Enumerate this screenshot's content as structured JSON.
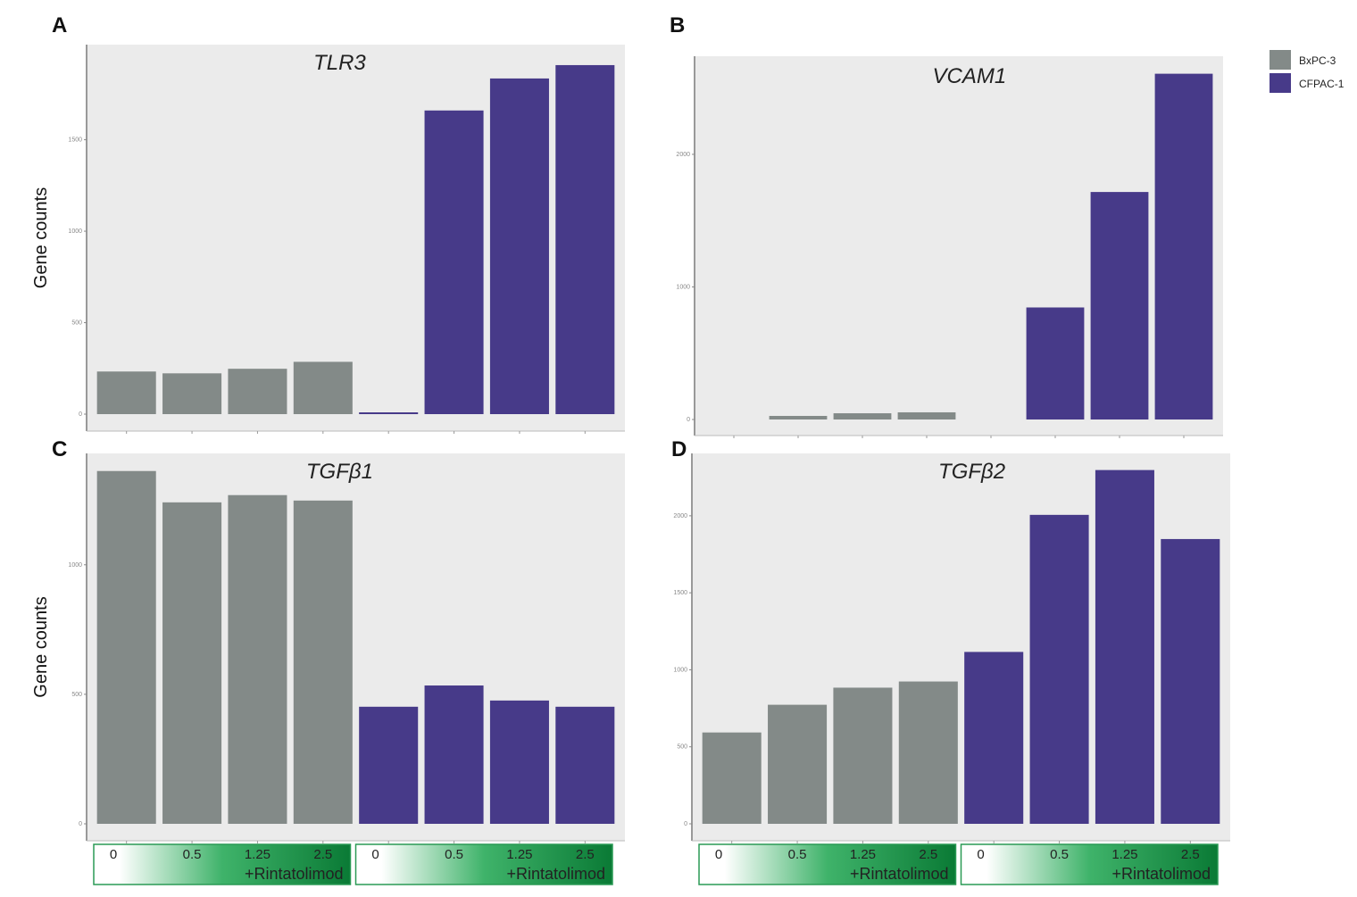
{
  "colors": {
    "BxPC-3": "#838a88",
    "CFPAC-1": "#473a89",
    "panel_bg": "#ebebeb",
    "dose_gradient_end": "#0a7a35"
  },
  "legend": [
    {
      "label": "BxPC-3",
      "color": "#838a88"
    },
    {
      "label": "CFPAC-1",
      "color": "#473a89"
    }
  ],
  "dose_labels": [
    "0",
    "0.5",
    "1.25",
    "2.5"
  ],
  "dose_caption": "+Rintatolimod",
  "chart_data": [
    {
      "type": "bar",
      "panel": "A",
      "title": "TLR3",
      "ylabel": "Gene counts",
      "categories": [
        "BxPC-3 0",
        "BxPC-3 0.5",
        "BxPC-3 1.25",
        "BxPC-3 2.5",
        "CFPAC-1 0",
        "CFPAC-1 0.5",
        "CFPAC-1 1.25",
        "CFPAC-1 2.5"
      ],
      "series": [
        {
          "name": "BxPC-3",
          "values": [
            233,
            223,
            248,
            286,
            null,
            null,
            null,
            null
          ]
        },
        {
          "name": "CFPAC-1",
          "values": [
            null,
            null,
            null,
            null,
            8,
            1660,
            1835,
            1908
          ]
        }
      ],
      "yticks": [
        0,
        500,
        1000,
        1500
      ],
      "ylim": [
        0,
        2020
      ]
    },
    {
      "type": "bar",
      "panel": "B",
      "title": "VCAM1",
      "ylabel": "",
      "categories": [
        "BxPC-3 0",
        "BxPC-3 0.5",
        "BxPC-3 1.25",
        "BxPC-3 2.5",
        "CFPAC-1 0",
        "CFPAC-1 0.5",
        "CFPAC-1 1.25",
        "CFPAC-1 2.5"
      ],
      "series": [
        {
          "name": "BxPC-3",
          "values": [
            0,
            27,
            47,
            54,
            null,
            null,
            null,
            null
          ]
        },
        {
          "name": "CFPAC-1",
          "values": [
            null,
            null,
            null,
            null,
            0,
            845,
            1716,
            2608
          ]
        }
      ],
      "yticks": [
        0,
        1000,
        2000
      ],
      "ylim": [
        0,
        2740
      ]
    },
    {
      "type": "bar",
      "panel": "C",
      "title": "TGFβ1",
      "ylabel": "Gene counts",
      "categories": [
        "BxPC-3 0",
        "BxPC-3 0.5",
        "BxPC-3 1.25",
        "BxPC-3 2.5",
        "CFPAC-1 0",
        "CFPAC-1 0.5",
        "CFPAC-1 1.25",
        "CFPAC-1 2.5"
      ],
      "series": [
        {
          "name": "BxPC-3",
          "values": [
            1362,
            1241,
            1269,
            1248,
            null,
            null,
            null,
            null
          ]
        },
        {
          "name": "CFPAC-1",
          "values": [
            null,
            null,
            null,
            null,
            452,
            534,
            476,
            452
          ]
        }
      ],
      "yticks": [
        0,
        500,
        1000
      ],
      "ylim": [
        0,
        1430
      ]
    },
    {
      "type": "bar",
      "panel": "D",
      "title": "TGFβ2",
      "ylabel": "",
      "categories": [
        "BxPC-3 0",
        "BxPC-3 0.5",
        "BxPC-3 1.25",
        "BxPC-3 2.5",
        "CFPAC-1 0",
        "CFPAC-1 0.5",
        "CFPAC-1 1.25",
        "CFPAC-1 2.5"
      ],
      "series": [
        {
          "name": "BxPC-3",
          "values": [
            593,
            773,
            884,
            924,
            null,
            null,
            null,
            null
          ]
        },
        {
          "name": "CFPAC-1",
          "values": [
            null,
            null,
            null,
            null,
            1116,
            2006,
            2297,
            1849
          ]
        }
      ],
      "yticks": [
        0,
        500,
        1000,
        1500,
        2000
      ],
      "ylim": [
        0,
        2405
      ]
    }
  ]
}
